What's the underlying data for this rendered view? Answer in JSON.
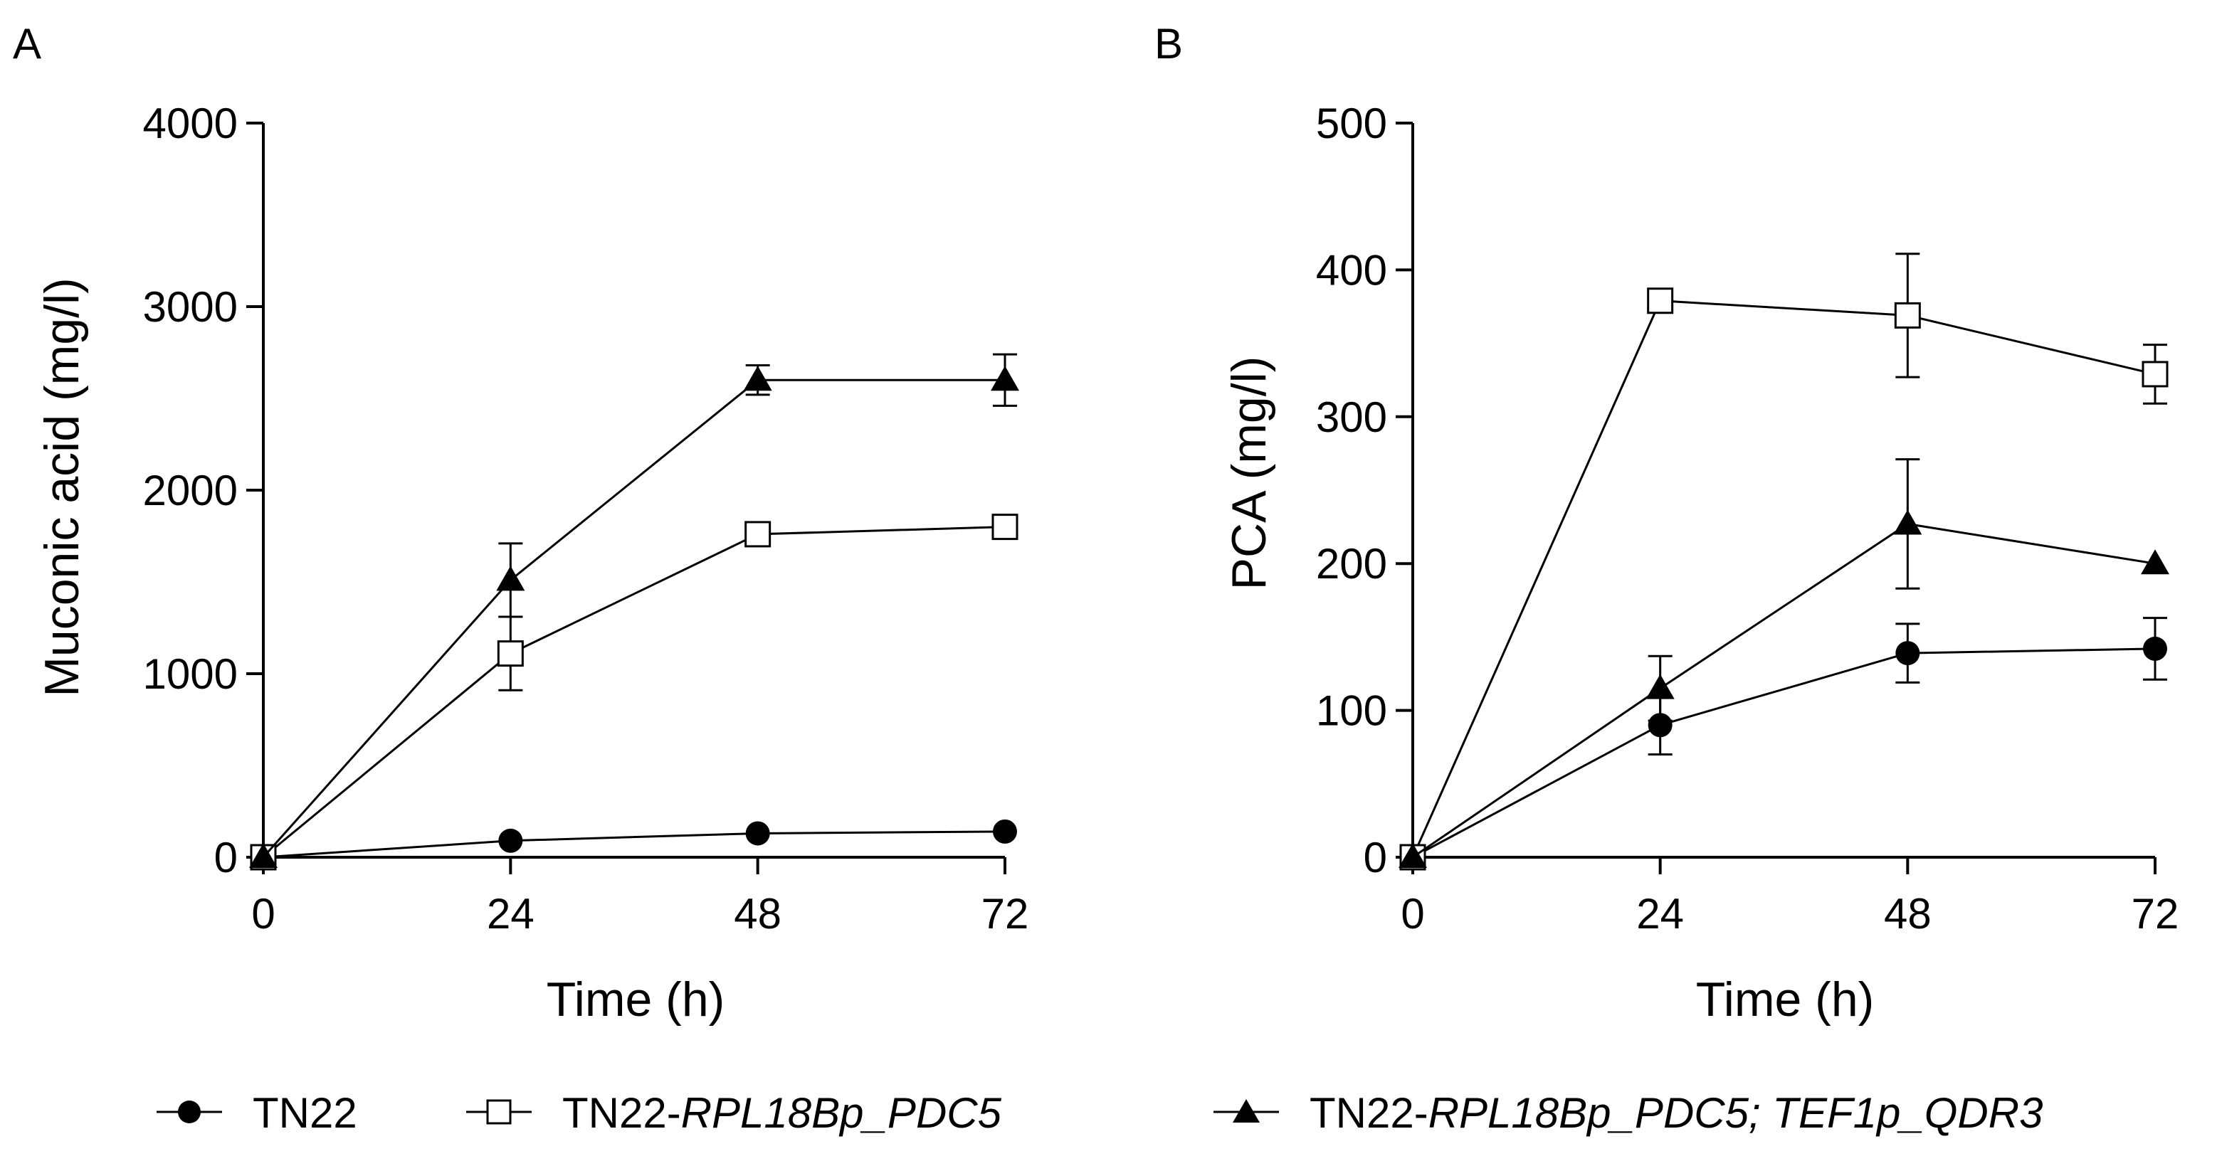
{
  "chart_data": [
    {
      "type": "line",
      "panel_label": "A",
      "title": "",
      "xlabel": "Time (h)",
      "ylabel": "Muconic acid (mg/l)",
      "x": [
        0,
        24,
        48,
        72
      ],
      "x_ticks": [
        "0",
        "24",
        "48",
        "72"
      ],
      "xlim": [
        0,
        72
      ],
      "y_ticks": [
        "0",
        "1000",
        "2000",
        "3000",
        "4000"
      ],
      "ylim": [
        0,
        4000
      ],
      "grid": false,
      "series": [
        {
          "name": "TN22",
          "marker": "filled-circle",
          "values": [
            0,
            90,
            130,
            140
          ],
          "errors": [
            0,
            0,
            0,
            0
          ]
        },
        {
          "name": "TN22-RPL18Bp_PDC5",
          "marker": "open-square",
          "values": [
            0,
            1110,
            1760,
            1800
          ],
          "errors": [
            0,
            200,
            0,
            0
          ]
        },
        {
          "name": "TN22-RPL18Bp_PDC5; TEF1p_QDR3",
          "marker": "filled-triangle",
          "values": [
            0,
            1510,
            2600,
            2600
          ],
          "errors": [
            0,
            200,
            80,
            140
          ]
        }
      ]
    },
    {
      "type": "line",
      "panel_label": "B",
      "title": "",
      "xlabel": "Time (h)",
      "ylabel": "PCA (mg/l)",
      "x": [
        0,
        24,
        48,
        72
      ],
      "x_ticks": [
        "0",
        "24",
        "48",
        "72"
      ],
      "xlim": [
        0,
        72
      ],
      "y_ticks": [
        "0",
        "100",
        "200",
        "300",
        "400",
        "500"
      ],
      "ylim": [
        0,
        500
      ],
      "grid": false,
      "series": [
        {
          "name": "TN22",
          "marker": "filled-circle",
          "values": [
            0,
            90,
            139,
            142
          ],
          "errors": [
            0,
            20,
            20,
            21
          ]
        },
        {
          "name": "TN22-RPL18Bp_PDC5",
          "marker": "open-square",
          "values": [
            0,
            379,
            369,
            329
          ],
          "errors": [
            0,
            0,
            42,
            20
          ]
        },
        {
          "name": "TN22-RPL18Bp_PDC5; TEF1p_QDR3",
          "marker": "filled-triangle",
          "values": [
            0,
            115,
            227,
            200
          ],
          "errors": [
            0,
            22,
            44,
            0
          ]
        }
      ]
    }
  ],
  "legend": {
    "placement": "bottom",
    "items": [
      {
        "marker": "filled-circle",
        "prefix": "TN22",
        "italic": "",
        "suffix": ""
      },
      {
        "marker": "open-square",
        "prefix": "TN22-",
        "italic": "RPL18Bp_PDC5",
        "suffix": ""
      },
      {
        "marker": "filled-triangle",
        "prefix": "TN22-",
        "italic": "RPL18Bp_PDC5; TEF1p_QDR3",
        "suffix": ""
      }
    ]
  }
}
